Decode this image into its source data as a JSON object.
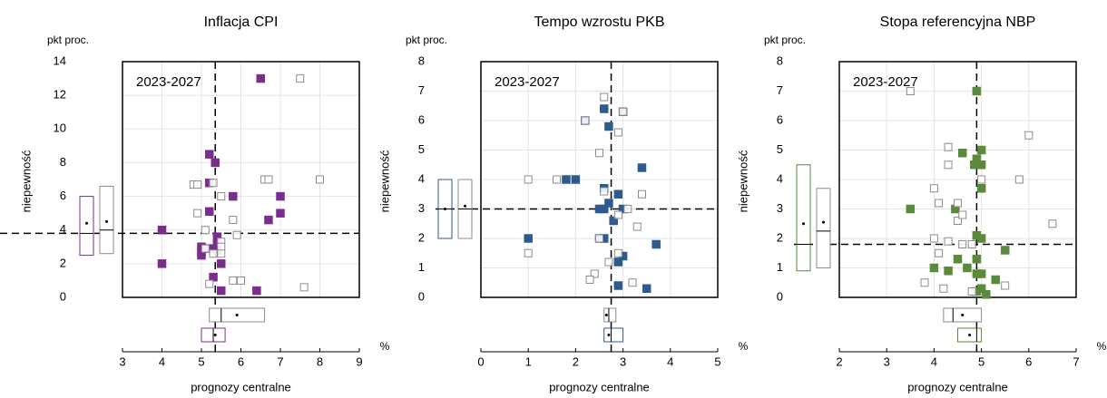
{
  "chart_data": [
    {
      "type": "scatter",
      "title": "Inflacja CPI",
      "y_unit": "pkt proc.",
      "ylabel": "niepewność",
      "xlabel": "prognozy  centralne",
      "x_unit": "%",
      "annotation": "2023-2027",
      "xlim": [
        3,
        9
      ],
      "xticks": [
        3,
        4,
        5,
        6,
        7,
        8,
        9
      ],
      "ylim": [
        0,
        14
      ],
      "yticks": [
        0,
        2,
        4,
        6,
        8,
        10,
        12,
        14
      ],
      "grid": true,
      "reference": {
        "x": 5.35,
        "y": 3.8
      },
      "series": [
        {
          "color": "#7b2d8e",
          "filled": true,
          "x": [
            6.5,
            5.35,
            5.2,
            5.2,
            5.8,
            5.2,
            6.7,
            7,
            7,
            4,
            5.4,
            5,
            5,
            5,
            5.2,
            5.4,
            5.5,
            4,
            5.3,
            5.5,
            6.4,
            5.4
          ],
          "values": [
            13,
            8,
            8.5,
            6.8,
            6,
            5.1,
            4.6,
            6,
            5,
            4,
            3.6,
            3,
            2.7,
            2.5,
            2.9,
            2.8,
            2,
            2,
            1.2,
            0.4,
            0.4,
            3.2
          ]
        },
        {
          "color": "#8c8c8c",
          "filled": false,
          "x": [
            7.5,
            5.3,
            4.8,
            4.9,
            5.5,
            6.6,
            6.7,
            8,
            4.9,
            5.8,
            5.9,
            5.5,
            5.5,
            5.1,
            5.3,
            5.5,
            5.1,
            5.8,
            6,
            5.2,
            7.6
          ],
          "values": [
            13,
            6.8,
            6.7,
            6.7,
            6,
            7,
            7,
            7,
            5,
            4.6,
            3.7,
            3.3,
            3,
            2.9,
            2.6,
            2.6,
            4,
            1,
            1,
            0.8,
            0.6
          ]
        }
      ],
      "y_boxes": [
        {
          "color": "#7b2d8e",
          "q1": 2.5,
          "median": 3.8,
          "q3": 6,
          "mean": 4.4
        },
        {
          "color": "#8c8c8c",
          "q1": 2.6,
          "median": 4,
          "q3": 6.6,
          "mean": 4.5
        }
      ],
      "x_boxes": [
        {
          "color": "#8c8c8c",
          "q1": 5.2,
          "median": 5.5,
          "q3": 6.6,
          "mean": 5.9
        },
        {
          "color": "#7b2d8e",
          "q1": 5.0,
          "median": 5.3,
          "q3": 5.6,
          "mean": 5.35
        }
      ]
    },
    {
      "type": "scatter",
      "title": "Tempo wzrostu PKB",
      "y_unit": "pkt proc.",
      "ylabel": "niepewność",
      "xlabel": "prognozy  centralne",
      "x_unit": "%",
      "annotation": "2023-2027",
      "xlim": [
        0,
        5
      ],
      "xticks": [
        0,
        1,
        2,
        3,
        4,
        5
      ],
      "ylim": [
        0,
        8
      ],
      "yticks": [
        0,
        1,
        2,
        3,
        4,
        5,
        6,
        7,
        8
      ],
      "grid": true,
      "reference": {
        "x": 2.75,
        "y": 3
      },
      "series": [
        {
          "color": "#2e5a8e",
          "filled": true,
          "x": [
            2.6,
            2.2,
            2.7,
            3,
            1.8,
            2,
            3.4,
            2.6,
            2.7,
            2.9,
            2.5,
            2.6,
            3,
            2.8,
            1,
            2.5,
            2.6,
            3.7,
            3,
            2.9,
            2.9,
            3.5
          ],
          "values": [
            6.4,
            6,
            5.8,
            6.3,
            4,
            4,
            4.4,
            3.7,
            3.2,
            3.5,
            3,
            3,
            3,
            2.6,
            2,
            2,
            2,
            1.8,
            1.4,
            1.2,
            0.4,
            0.3
          ]
        },
        {
          "color": "#8c8c8c",
          "filled": false,
          "x": [
            2.6,
            2.9,
            2.5,
            1,
            1.6,
            2.6,
            3.4,
            3.1,
            2.9,
            3.3,
            1,
            2.9,
            3.2,
            2.4,
            2.3,
            2.7,
            2.5,
            2.2,
            3
          ],
          "values": [
            6.8,
            5.6,
            4.9,
            4,
            4,
            3.6,
            3.5,
            3,
            2.8,
            2.4,
            1.5,
            1.5,
            0.5,
            0.8,
            0.6,
            1.2,
            2,
            6,
            6.3
          ]
        }
      ],
      "y_boxes": [
        {
          "color": "#2e5a8e",
          "q1": 2,
          "median": 3,
          "q3": 4,
          "mean": 3
        },
        {
          "color": "#8c8c8c",
          "q1": 2,
          "median": 3,
          "q3": 4,
          "mean": 3.1
        }
      ],
      "x_boxes": [
        {
          "color": "#8c8c8c",
          "q1": 2.6,
          "median": 2.7,
          "q3": 2.85,
          "mean": 2.65
        },
        {
          "color": "#2e5a8e",
          "q1": 2.6,
          "median": 2.75,
          "q3": 3.0,
          "mean": 2.7
        }
      ]
    },
    {
      "type": "scatter",
      "title": "Stopa referencyjna NBP",
      "y_unit": "pkt proc.",
      "ylabel": "niepewność",
      "xlabel": "prognozy  centralne",
      "x_unit": "%",
      "annotation": "2023-2027",
      "xlim": [
        2,
        7
      ],
      "xticks": [
        2,
        3,
        4,
        5,
        6,
        7
      ],
      "ylim": [
        0,
        8
      ],
      "yticks": [
        0,
        1,
        2,
        3,
        4,
        5,
        6,
        7,
        8
      ],
      "grid": true,
      "reference": {
        "x": 4.9,
        "y": 1.8
      },
      "series": [
        {
          "color": "#5a8a3a",
          "filled": true,
          "x": [
            4.9,
            4.6,
            5,
            4.9,
            4.85,
            5,
            5,
            3.5,
            4.9,
            5,
            4.5,
            4.3,
            4,
            4.7,
            4.9,
            4.9,
            5,
            5.3,
            5.5,
            5,
            5.1,
            4.45,
            4.9
          ],
          "values": [
            7,
            4.9,
            5,
            4.7,
            4.5,
            4.5,
            3.7,
            3,
            2.1,
            2,
            1.3,
            0.9,
            1,
            1,
            1.3,
            0.8,
            0.8,
            0.6,
            1.6,
            0.3,
            0.1,
            3,
            0.2
          ]
        },
        {
          "color": "#8c8c8c",
          "filled": false,
          "x": [
            3.5,
            6,
            4.3,
            4.3,
            5.8,
            5,
            4,
            4.1,
            4.5,
            4.5,
            4.6,
            4,
            4.3,
            4.6,
            3.8,
            4.2,
            4.1,
            4.8,
            5.5,
            6.5,
            4.8
          ],
          "values": [
            7,
            5.5,
            5.1,
            4.5,
            4,
            4,
            3.7,
            3.2,
            3.2,
            2.6,
            2.8,
            2,
            1.9,
            1.8,
            0.5,
            0.3,
            1.5,
            0.2,
            0.4,
            2.5,
            1.8
          ]
        }
      ],
      "y_boxes": [
        {
          "color": "#5a8a3a",
          "q1": 0.9,
          "median": 1.8,
          "q3": 4.5,
          "mean": 2.5
        },
        {
          "color": "#8c8c8c",
          "q1": 1,
          "median": 2.25,
          "q3": 3.7,
          "mean": 2.55
        }
      ],
      "x_boxes": [
        {
          "color": "#8c8c8c",
          "q1": 4.2,
          "median": 4.4,
          "q3": 5.0,
          "mean": 4.6
        },
        {
          "color": "#5a8a3a",
          "q1": 4.5,
          "median": 4.9,
          "q3": 5.0,
          "mean": 4.75
        }
      ]
    }
  ]
}
